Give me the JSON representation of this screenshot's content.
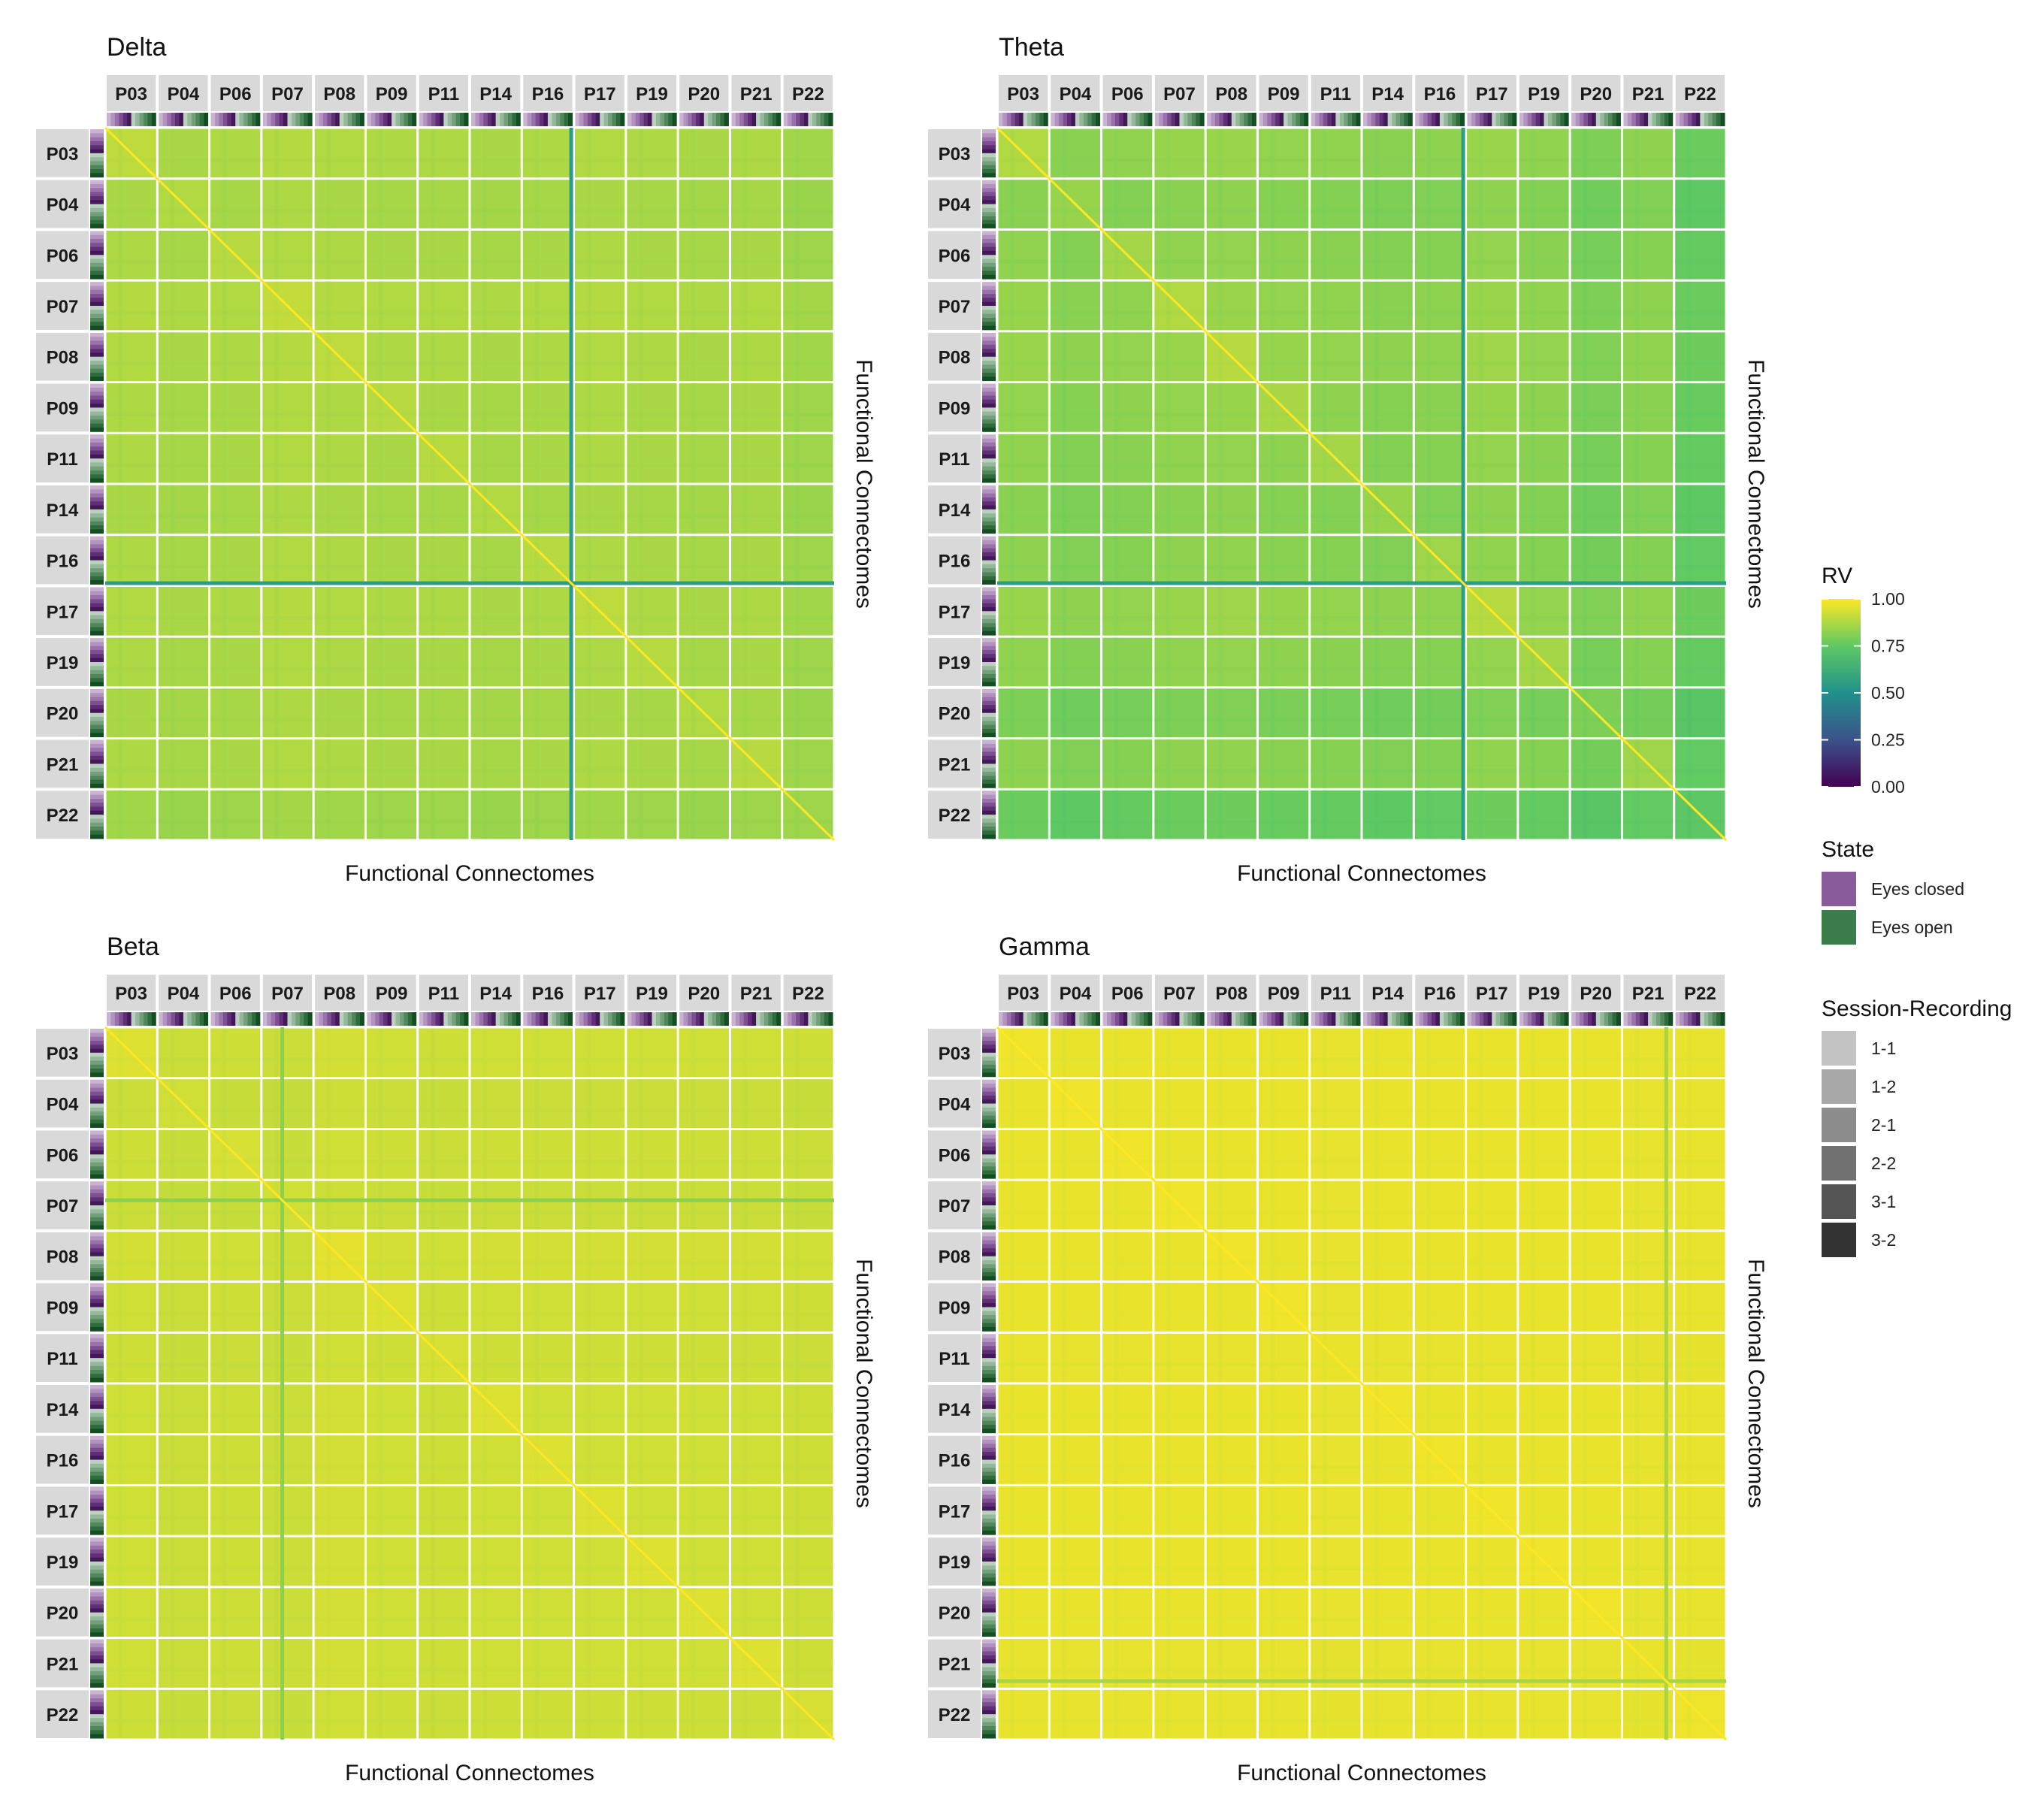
{
  "chart_data": [
    {
      "type": "heatmap",
      "title": "Delta",
      "xlabel": "Functional Connectomes",
      "ylabel": "Functional Connectomes",
      "participants": [
        "P03",
        "P04",
        "P06",
        "P07",
        "P08",
        "P09",
        "P11",
        "P14",
        "P16",
        "P17",
        "P19",
        "P20",
        "P21",
        "P22"
      ],
      "base_rv": 0.88,
      "within_participant_rv": 0.9,
      "diagonal_rv": 1.0,
      "participant_offsets": [
        0,
        -0.02,
        -0.01,
        0.01,
        0,
        -0.01,
        -0.01,
        -0.02,
        -0.01,
        0,
        -0.01,
        -0.02,
        -0.01,
        -0.05
      ],
      "outlier_lines": [
        {
          "participant": "P16",
          "position": 0.95,
          "rv": 0.55
        }
      ]
    },
    {
      "type": "heatmap",
      "title": "Theta",
      "xlabel": "Functional Connectomes",
      "ylabel": "Functional Connectomes",
      "participants": [
        "P03",
        "P04",
        "P06",
        "P07",
        "P08",
        "P09",
        "P11",
        "P14",
        "P16",
        "P17",
        "P19",
        "P20",
        "P21",
        "P22"
      ],
      "base_rv": 0.84,
      "within_participant_rv": 0.88,
      "diagonal_rv": 1.0,
      "participant_offsets": [
        0,
        -0.04,
        -0.02,
        0,
        0.01,
        -0.01,
        -0.02,
        -0.04,
        -0.03,
        0.01,
        -0.02,
        -0.08,
        -0.03,
        -0.14
      ],
      "outlier_lines": [
        {
          "participant": "P16",
          "position": 0.95,
          "rv": 0.55
        }
      ]
    },
    {
      "type": "heatmap",
      "title": "Beta",
      "xlabel": "Functional Connectomes",
      "ylabel": "Functional Connectomes",
      "participants": [
        "P03",
        "P04",
        "P06",
        "P07",
        "P08",
        "P09",
        "P11",
        "P14",
        "P16",
        "P17",
        "P19",
        "P20",
        "P21",
        "P22"
      ],
      "base_rv": 0.93,
      "within_participant_rv": 0.95,
      "diagonal_rv": 1.0,
      "participant_offsets": [
        0,
        -0.02,
        -0.01,
        -0.02,
        0.01,
        0,
        -0.01,
        0,
        0,
        0,
        0,
        0,
        0,
        -0.01
      ],
      "outlier_lines": [
        {
          "participant": "P07",
          "position": 0.4,
          "rv": 0.82
        }
      ]
    },
    {
      "type": "heatmap",
      "title": "Gamma",
      "xlabel": "Functional Connectomes",
      "ylabel": "Functional Connectomes",
      "participants": [
        "P03",
        "P04",
        "P06",
        "P07",
        "P08",
        "P09",
        "P11",
        "P14",
        "P16",
        "P17",
        "P19",
        "P20",
        "P21",
        "P22"
      ],
      "base_rv": 0.97,
      "within_participant_rv": 0.98,
      "diagonal_rv": 1.0,
      "participant_offsets": [
        0,
        0,
        0,
        0,
        0,
        0,
        -0.01,
        0,
        0,
        0,
        0,
        0,
        -0.01,
        -0.005
      ],
      "outlier_lines": [
        {
          "participant": "P21",
          "position": 0.85,
          "rv": 0.86
        }
      ]
    }
  ],
  "legend": {
    "rv": {
      "title": "RV",
      "range": [
        0,
        1
      ],
      "ticks": [
        "1.00",
        "0.75",
        "0.50",
        "0.25",
        "0.00"
      ],
      "tick_values": [
        1.0,
        0.75,
        0.5,
        0.25,
        0.0
      ],
      "colors": [
        "#440154",
        "#3b528b",
        "#21918c",
        "#5ec962",
        "#fde725"
      ]
    },
    "state": {
      "title": "State",
      "items": [
        {
          "label": "Eyes closed",
          "color": "#8a5b9a"
        },
        {
          "label": "Eyes open",
          "color": "#3a7d4a"
        }
      ]
    },
    "session": {
      "title": "Session-Recording",
      "items": [
        {
          "label": "1-1",
          "color": "#c3c3c3"
        },
        {
          "label": "1-2",
          "color": "#a8a8a8"
        },
        {
          "label": "2-1",
          "color": "#8c8c8c"
        },
        {
          "label": "2-2",
          "color": "#717171"
        },
        {
          "label": "3-1",
          "color": "#555555"
        },
        {
          "label": "3-2",
          "color": "#333333"
        }
      ]
    }
  }
}
